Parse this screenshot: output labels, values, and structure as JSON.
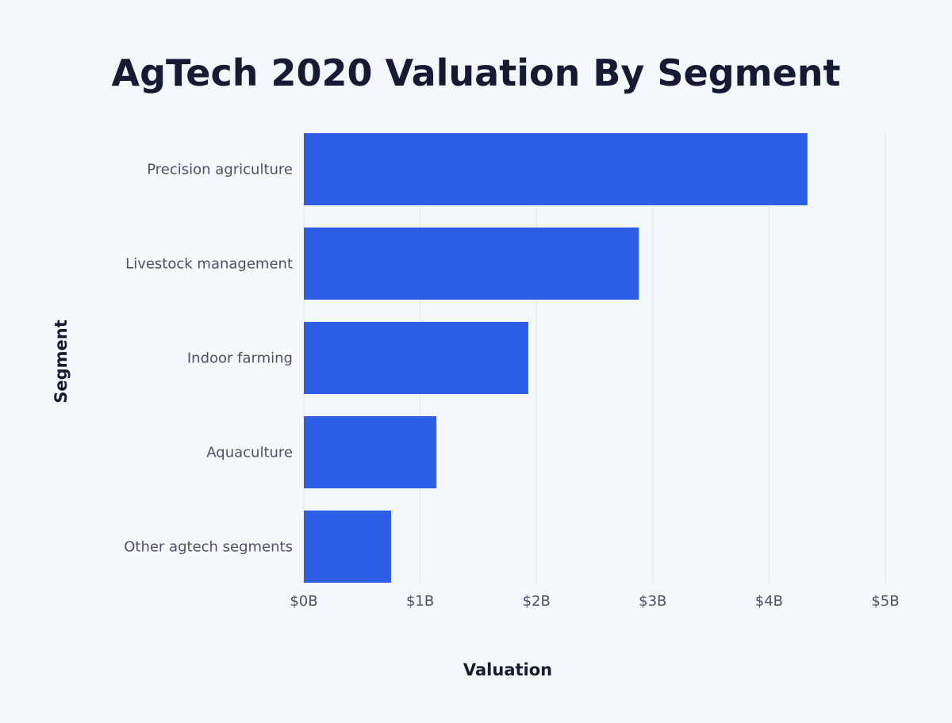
{
  "chart_data": {
    "type": "bar",
    "orientation": "horizontal",
    "title": "AgTech 2020 Valuation By Segment",
    "xlabel": "Valuation",
    "ylabel": "Segment",
    "categories": [
      "Precision agriculture",
      "Livestock management",
      "Indoor farming",
      "Aquaculture",
      "Other agtech segments"
    ],
    "values": [
      4.33,
      2.88,
      1.93,
      1.14,
      0.75
    ],
    "value_unit": "billion USD",
    "xlim": [
      0,
      5
    ],
    "xticks": [
      0,
      1,
      2,
      3,
      4,
      5
    ],
    "xtick_labels": [
      "$0B",
      "$1B",
      "$2B",
      "$3B",
      "$4B",
      "$5B"
    ],
    "grid": "vertical",
    "bar_color": "#2e5ee5"
  }
}
